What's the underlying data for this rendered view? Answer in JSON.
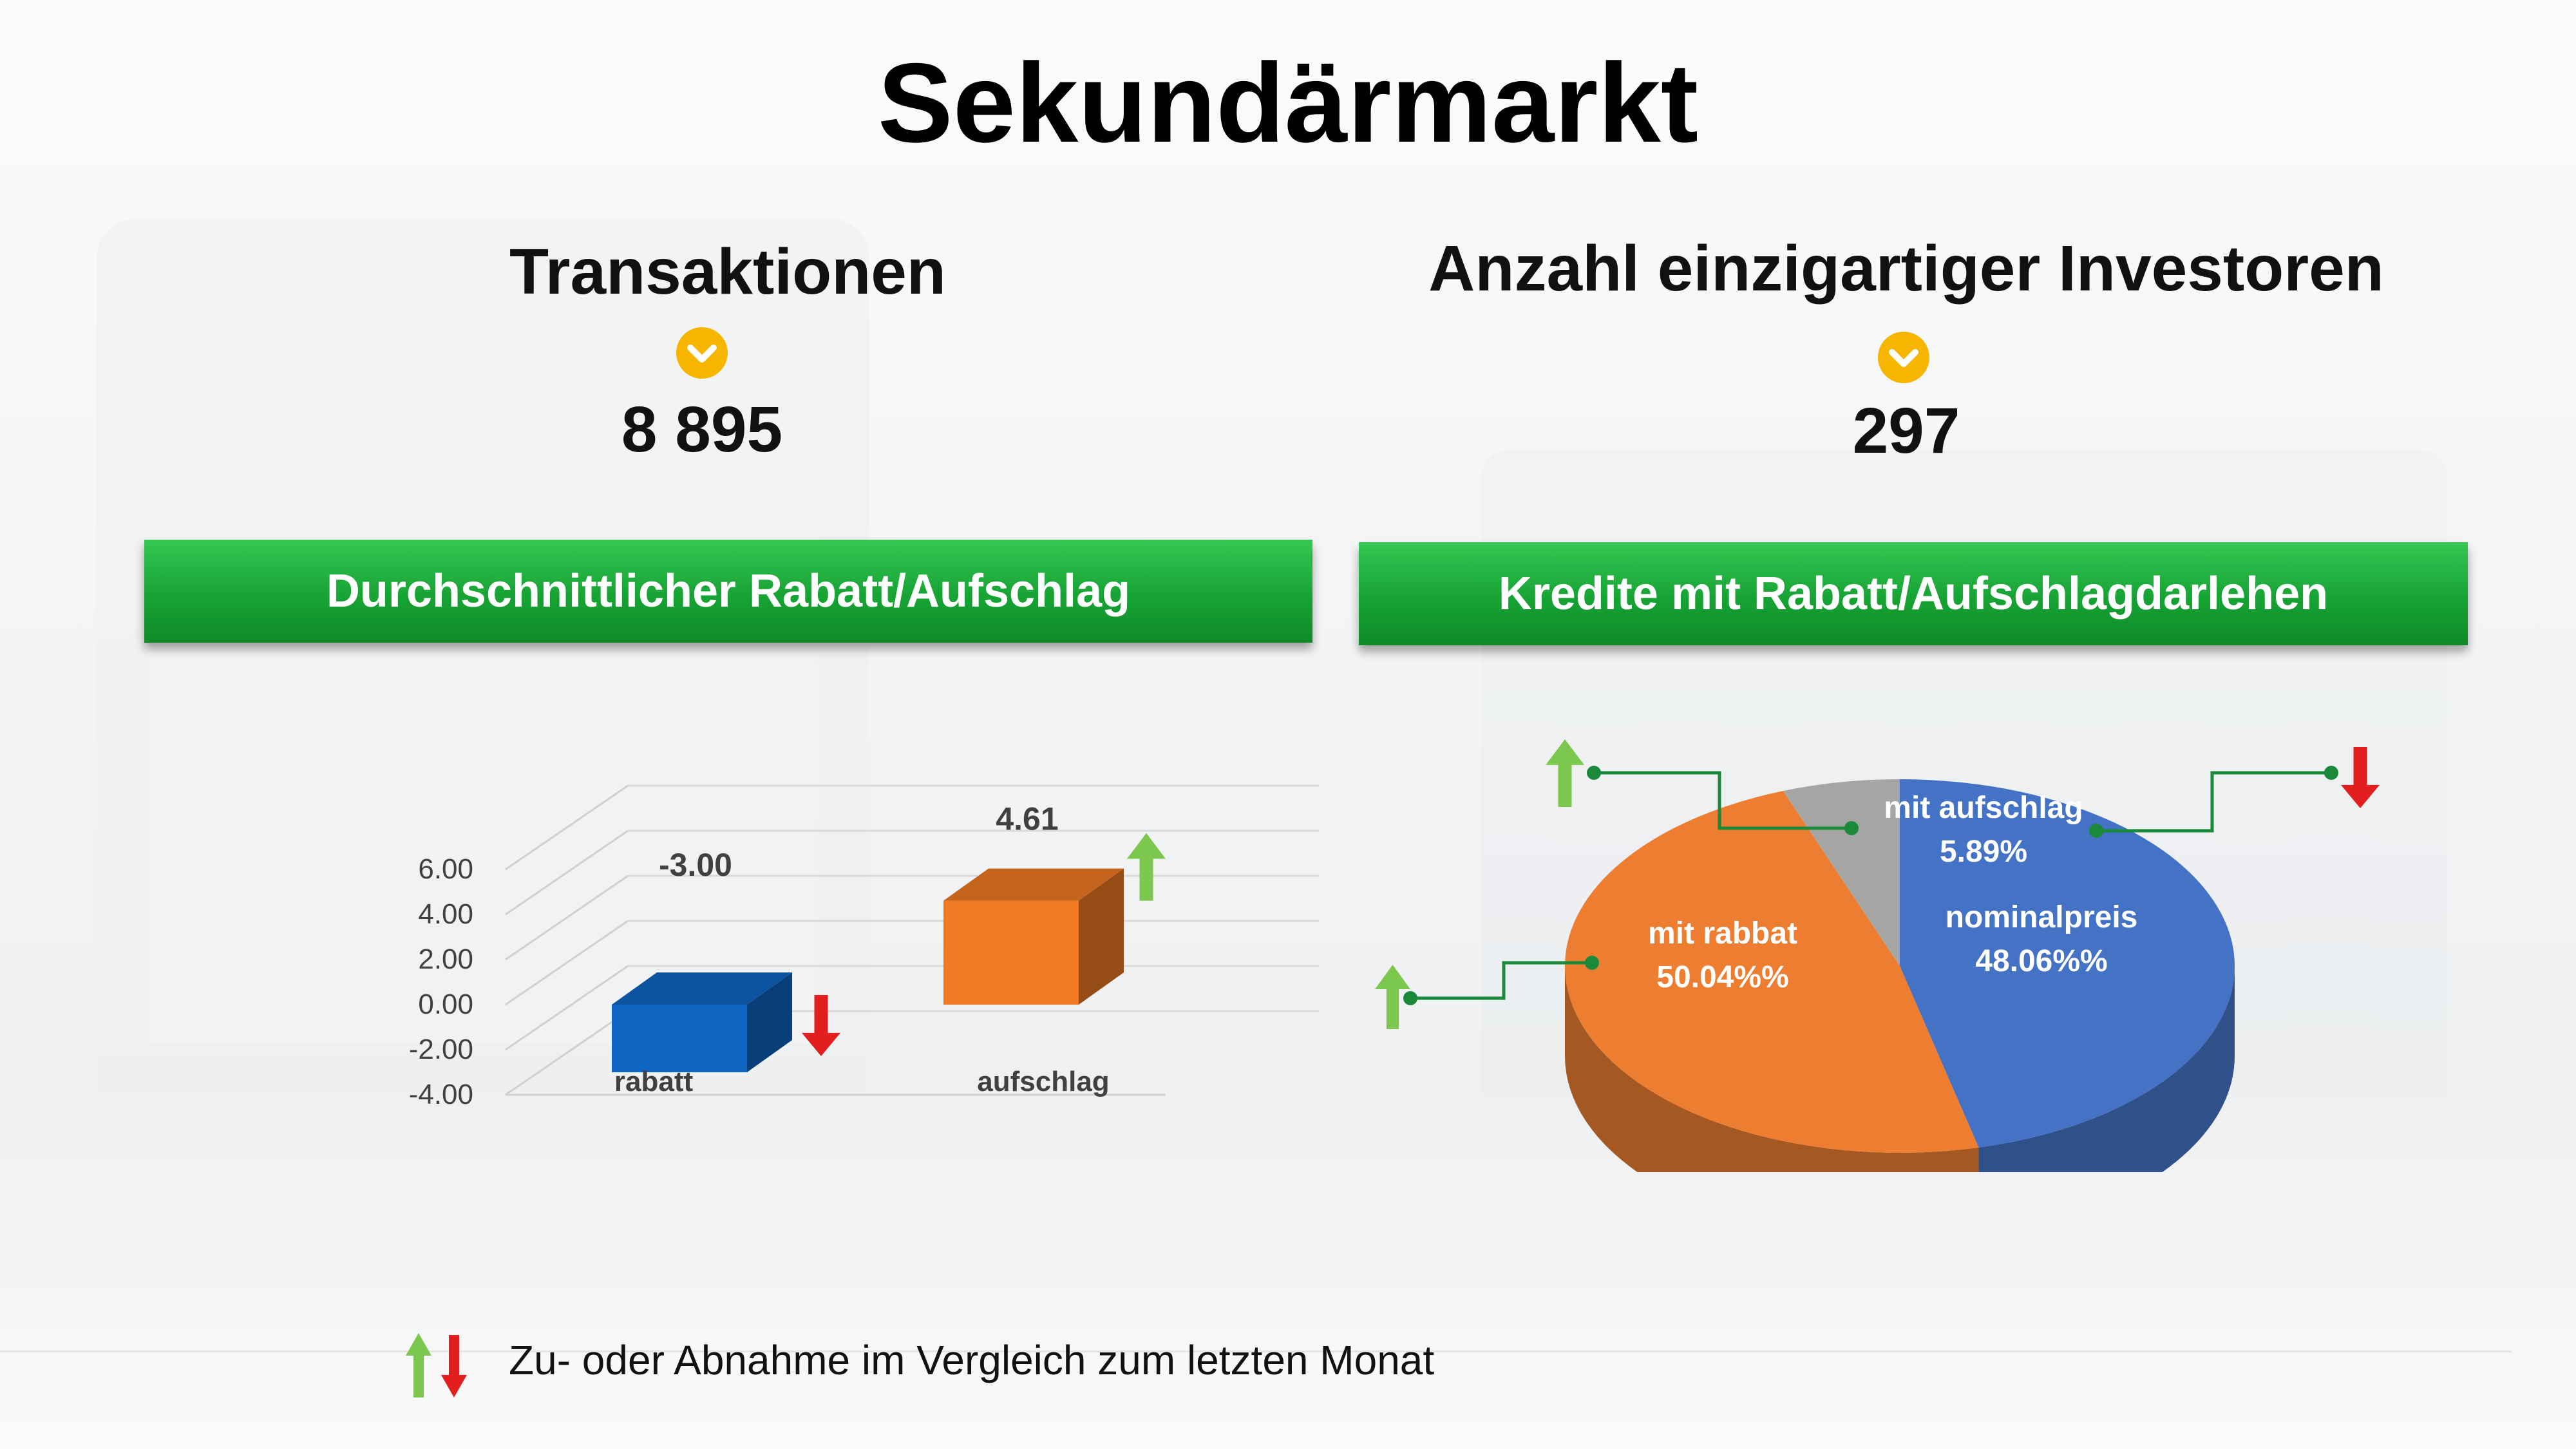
{
  "page_title": "Sekundärmarkt",
  "kpis": [
    {
      "title": "Transaktionen",
      "value": "8 895",
      "icon": "chevron-down-circle-icon"
    },
    {
      "title": "Anzahl einzigartiger Investoren",
      "value": "297",
      "icon": "chevron-down-circle-icon"
    }
  ],
  "banners": {
    "left": "Durchschnittlicher Rabatt/Aufschlag",
    "right": "Kredite mit Rabatt/Aufschlagdarlehen"
  },
  "colors": {
    "green_banner": "#1aa838",
    "bar_rabatt": "#0f66c2",
    "bar_aufschlag": "#f07a22",
    "pie_nominal": "#4472c4",
    "pie_rabbat": "#ed7d31",
    "pie_aufschlag": "#a5a5a5",
    "arrow_up": "#7cc84e",
    "arrow_down": "#e31e1e",
    "label_dark": "#404040"
  },
  "chart_data": [
    {
      "type": "bar",
      "categories": [
        "rabatt",
        "aufschlag"
      ],
      "values": [
        -3.0,
        4.61
      ],
      "data_labels": [
        "-3.00",
        "4.61"
      ],
      "trend": [
        "down",
        "up"
      ],
      "ylim": [
        -4,
        6
      ],
      "y_ticks": [
        "6.00",
        "4.00",
        "2.00",
        "0.00",
        "-2.00",
        "-4.00"
      ],
      "grid": true
    },
    {
      "type": "pie",
      "slices": [
        {
          "label": "nominalpreis",
          "value": 48.06,
          "value_label": "48.06%%",
          "trend": "down"
        },
        {
          "label": "mit rabbat",
          "value": 50.04,
          "value_label": "50.04%%",
          "trend": "up"
        },
        {
          "label": "mit aufschlag",
          "value": 5.89,
          "value_label": "5.89%",
          "trend": "up"
        }
      ]
    }
  ],
  "legend": {
    "text": "Zu- oder Abnahme im Vergleich zum letzten Monat",
    "icons": [
      "arrow-up-icon",
      "arrow-down-icon"
    ]
  }
}
